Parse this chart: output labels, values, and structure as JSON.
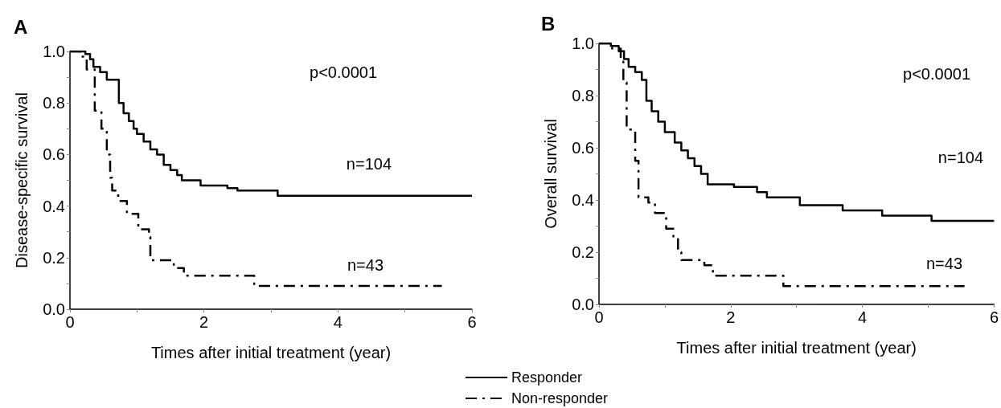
{
  "chart_data": [
    {
      "type": "step",
      "title": "A",
      "xlabel": "Times after initial treatment (year)",
      "ylabel": "Disease-specific survival",
      "xlim": [
        0,
        6
      ],
      "xticks": [
        0,
        {
          "value": 1,
          "label": null
        },
        2,
        {
          "value": 3,
          "label": null
        },
        4,
        {
          "value": 5,
          "label": null
        },
        6
      ],
      "ylim": [
        0,
        1
      ],
      "yticks": [
        {
          "value": 0,
          "label": "0.0"
        },
        {
          "value": 0.1,
          "label": null
        },
        {
          "value": 0.2,
          "label": "0.2"
        },
        {
          "value": 0.3,
          "label": null
        },
        {
          "value": 0.4,
          "label": "0.4"
        },
        {
          "value": 0.5,
          "label": null
        },
        {
          "value": 0.6,
          "label": "0.6"
        },
        {
          "value": 0.7,
          "label": null
        },
        {
          "value": 0.8,
          "label": "0.8"
        },
        {
          "value": 0.9,
          "label": null
        },
        {
          "value": 1,
          "label": "1.0"
        }
      ],
      "marker": "none",
      "legend": "bottom right",
      "series": [
        {
          "name": "Responder",
          "color": "#000000",
          "line_style": "solid",
          "x": [
            0,
            0.23,
            0.3,
            0.35,
            0.45,
            0.55,
            0.73,
            0.8,
            0.88,
            0.95,
            1.0,
            1.1,
            1.2,
            1.3,
            1.4,
            1.5,
            1.6,
            1.67,
            1.95,
            2.35,
            2.5,
            3.1,
            6.0
          ],
          "values": [
            1.0,
            0.99,
            0.97,
            0.94,
            0.92,
            0.89,
            0.8,
            0.76,
            0.73,
            0.7,
            0.68,
            0.65,
            0.62,
            0.6,
            0.56,
            0.54,
            0.52,
            0.5,
            0.48,
            0.47,
            0.46,
            0.44,
            0.44
          ]
        },
        {
          "name": "Non-responder",
          "color": "#000000",
          "line_style": "dashed",
          "x": [
            0,
            0.15,
            0.25,
            0.37,
            0.47,
            0.55,
            0.6,
            0.63,
            0.72,
            0.85,
            1.02,
            1.18,
            1.2,
            1.55,
            1.7,
            2.75,
            5.55
          ],
          "values": [
            1.0,
            0.98,
            0.93,
            0.77,
            0.7,
            0.6,
            0.51,
            0.46,
            0.42,
            0.37,
            0.31,
            0.28,
            0.19,
            0.16,
            0.13,
            0.09,
            0.09
          ]
        }
      ],
      "annotations": [
        "p<0.0001",
        "n=104",
        "n=43"
      ]
    },
    {
      "type": "step",
      "title": "B",
      "xlabel": "Times after initial treatment (year)",
      "ylabel": "Overall survival",
      "xlim": [
        0,
        6
      ],
      "xticks": [
        0,
        {
          "value": 1,
          "label": null
        },
        2,
        {
          "value": 3,
          "label": null
        },
        4,
        {
          "value": 5,
          "label": null
        },
        6
      ],
      "ylim": [
        0,
        1
      ],
      "yticks": [
        {
          "value": 0,
          "label": "0.0"
        },
        {
          "value": 0.1,
          "label": null
        },
        {
          "value": 0.2,
          "label": "0.2"
        },
        {
          "value": 0.3,
          "label": null
        },
        {
          "value": 0.4,
          "label": "0.4"
        },
        {
          "value": 0.5,
          "label": null
        },
        {
          "value": 0.6,
          "label": "0.6"
        },
        {
          "value": 0.7,
          "label": null
        },
        {
          "value": 0.8,
          "label": "0.8"
        },
        {
          "value": 0.9,
          "label": null
        },
        {
          "value": 1,
          "label": "1.0"
        }
      ],
      "marker": "none",
      "series": [
        {
          "color": "#000000",
          "line_style": "solid",
          "x": [
            0,
            0.18,
            0.3,
            0.38,
            0.45,
            0.55,
            0.65,
            0.72,
            0.8,
            0.9,
            1.0,
            1.15,
            1.25,
            1.35,
            1.45,
            1.55,
            1.65,
            2.05,
            2.4,
            2.55,
            3.05,
            3.7,
            4.3,
            5.05,
            6.0
          ],
          "values": [
            1.0,
            0.99,
            0.97,
            0.94,
            0.91,
            0.89,
            0.86,
            0.78,
            0.74,
            0.7,
            0.66,
            0.62,
            0.59,
            0.56,
            0.53,
            0.5,
            0.46,
            0.45,
            0.43,
            0.41,
            0.38,
            0.36,
            0.34,
            0.32,
            0.32
          ]
        },
        {
          "color": "#000000",
          "line_style": "dashed",
          "x": [
            0,
            0.2,
            0.33,
            0.37,
            0.42,
            0.55,
            0.6,
            0.75,
            0.85,
            1.02,
            1.13,
            1.2,
            1.25,
            1.6,
            1.73,
            2.8,
            5.55
          ],
          "values": [
            1.0,
            0.98,
            0.93,
            0.85,
            0.67,
            0.55,
            0.41,
            0.39,
            0.35,
            0.29,
            0.25,
            0.2,
            0.17,
            0.15,
            0.11,
            0.07,
            0.07
          ]
        }
      ],
      "annotations": [
        "p<0.0001",
        "n=104",
        "n=43"
      ]
    }
  ]
}
